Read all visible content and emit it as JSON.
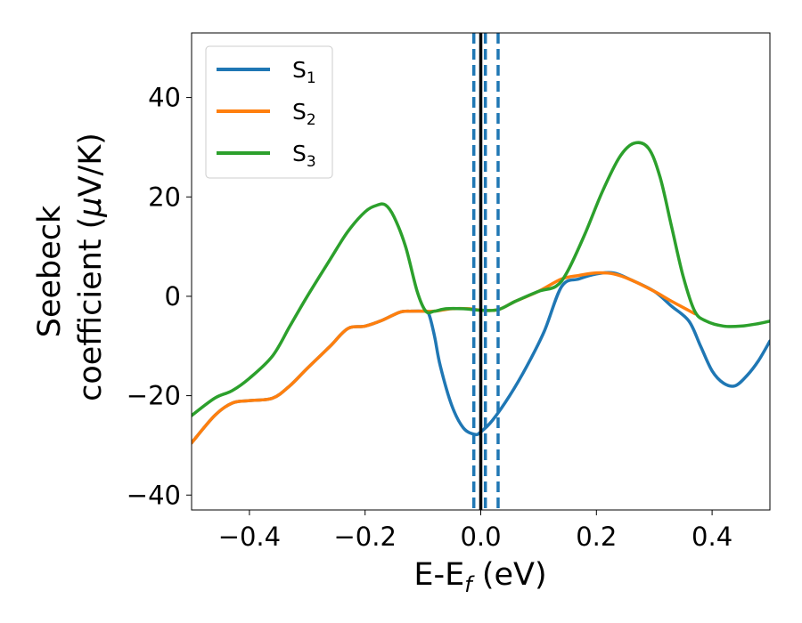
{
  "chart_data": {
    "type": "line",
    "xlabel": "E-E",
    "xlabel_sub": "f",
    "xlabel_unit": " (eV)",
    "ylabel_line1": "Seebeck",
    "ylabel_line2": "coefficient  (",
    "ylabel_mu": "μ",
    "ylabel_unit": "V/K)",
    "xlim": [
      -0.5,
      0.5
    ],
    "ylim": [
      -43,
      53
    ],
    "xticks": [
      {
        "value": -0.4,
        "label": "−0.4"
      },
      {
        "value": -0.2,
        "label": "−0.2"
      },
      {
        "value": 0.0,
        "label": "0.0"
      },
      {
        "value": 0.2,
        "label": "0.2"
      },
      {
        "value": 0.4,
        "label": "0.4"
      }
    ],
    "yticks": [
      {
        "value": -40,
        "label": "−40"
      },
      {
        "value": -20,
        "label": "−20"
      },
      {
        "value": 0,
        "label": "0"
      },
      {
        "value": 20,
        "label": "20"
      },
      {
        "value": 40,
        "label": "40"
      }
    ],
    "grid": false,
    "legend_position": "top-left",
    "series": [
      {
        "name": "S",
        "name_sub": "1",
        "color": "#1f77b4",
        "x": [
          -0.5,
          -0.46,
          -0.43,
          -0.4,
          -0.36,
          -0.33,
          -0.3,
          -0.26,
          -0.23,
          -0.2,
          -0.17,
          -0.14,
          -0.12,
          -0.1,
          -0.09,
          -0.08,
          -0.07,
          -0.05,
          -0.03,
          -0.01,
          0.0,
          0.02,
          0.05,
          0.08,
          0.11,
          0.14,
          0.17,
          0.2,
          0.23,
          0.26,
          0.3,
          0.33,
          0.36,
          0.38,
          0.4,
          0.42,
          0.44,
          0.46,
          0.48,
          0.5
        ],
        "y": [
          -29.5,
          -24,
          -21.5,
          -21,
          -20.5,
          -18,
          -14.5,
          -10,
          -6.5,
          -6,
          -4.8,
          -3.2,
          -3,
          -3,
          -3.5,
          -8,
          -14,
          -22,
          -26.5,
          -27.8,
          -27.3,
          -25,
          -20,
          -14,
          -7,
          2,
          3.5,
          4.5,
          4.7,
          3.3,
          1,
          -2,
          -5,
          -10,
          -15,
          -17.5,
          -18,
          -16,
          -13,
          -9
        ]
      },
      {
        "name": "S",
        "name_sub": "2",
        "color": "#ff7f0e",
        "x": [
          -0.5,
          -0.46,
          -0.43,
          -0.4,
          -0.36,
          -0.33,
          -0.3,
          -0.26,
          -0.23,
          -0.2,
          -0.17,
          -0.14,
          -0.12,
          -0.1,
          -0.08,
          -0.05,
          -0.02,
          0.0,
          0.03,
          0.06,
          0.1,
          0.14,
          0.17,
          0.2,
          0.23,
          0.26,
          0.3,
          0.33,
          0.37
        ],
        "y": [
          -29.5,
          -24,
          -21.5,
          -21,
          -20.5,
          -18,
          -14.5,
          -10,
          -6.5,
          -6,
          -4.8,
          -3.2,
          -3,
          -3,
          -3,
          -2.5,
          -2.5,
          -2.8,
          -2.7,
          -1,
          1,
          3.5,
          4.2,
          4.7,
          4.5,
          3.3,
          1,
          -1,
          -3.5
        ]
      },
      {
        "name": "S",
        "name_sub": "3",
        "color": "#2ca02c",
        "x": [
          -0.5,
          -0.46,
          -0.43,
          -0.4,
          -0.36,
          -0.33,
          -0.3,
          -0.26,
          -0.23,
          -0.2,
          -0.18,
          -0.165,
          -0.15,
          -0.13,
          -0.11,
          -0.095,
          -0.08,
          -0.06,
          -0.03,
          0.0,
          0.03,
          0.06,
          0.1,
          0.13,
          0.15,
          0.18,
          0.21,
          0.24,
          0.265,
          0.29,
          0.31,
          0.33,
          0.35,
          0.37,
          0.39,
          0.42,
          0.45,
          0.48,
          0.5
        ],
        "y": [
          -24,
          -20.5,
          -19,
          -16.5,
          -12,
          -6,
          0,
          7.5,
          13,
          17,
          18.3,
          18.4,
          16,
          10,
          1,
          -3,
          -3,
          -2.5,
          -2.5,
          -2.8,
          -2.7,
          -1,
          1,
          2,
          5,
          12.5,
          21,
          28,
          30.8,
          29.8,
          24,
          14,
          4,
          -3,
          -5,
          -6,
          -6,
          -5.5,
          -5
        ]
      }
    ],
    "vlines": [
      {
        "x": 0.0,
        "style": "solid",
        "color": "#000000"
      },
      {
        "x": -0.012,
        "style": "dashed",
        "color": "#1f77b4"
      },
      {
        "x": 0.008,
        "style": "dashed",
        "color": "#1f77b4"
      },
      {
        "x": 0.03,
        "style": "dashed",
        "color": "#1f77b4"
      }
    ]
  }
}
